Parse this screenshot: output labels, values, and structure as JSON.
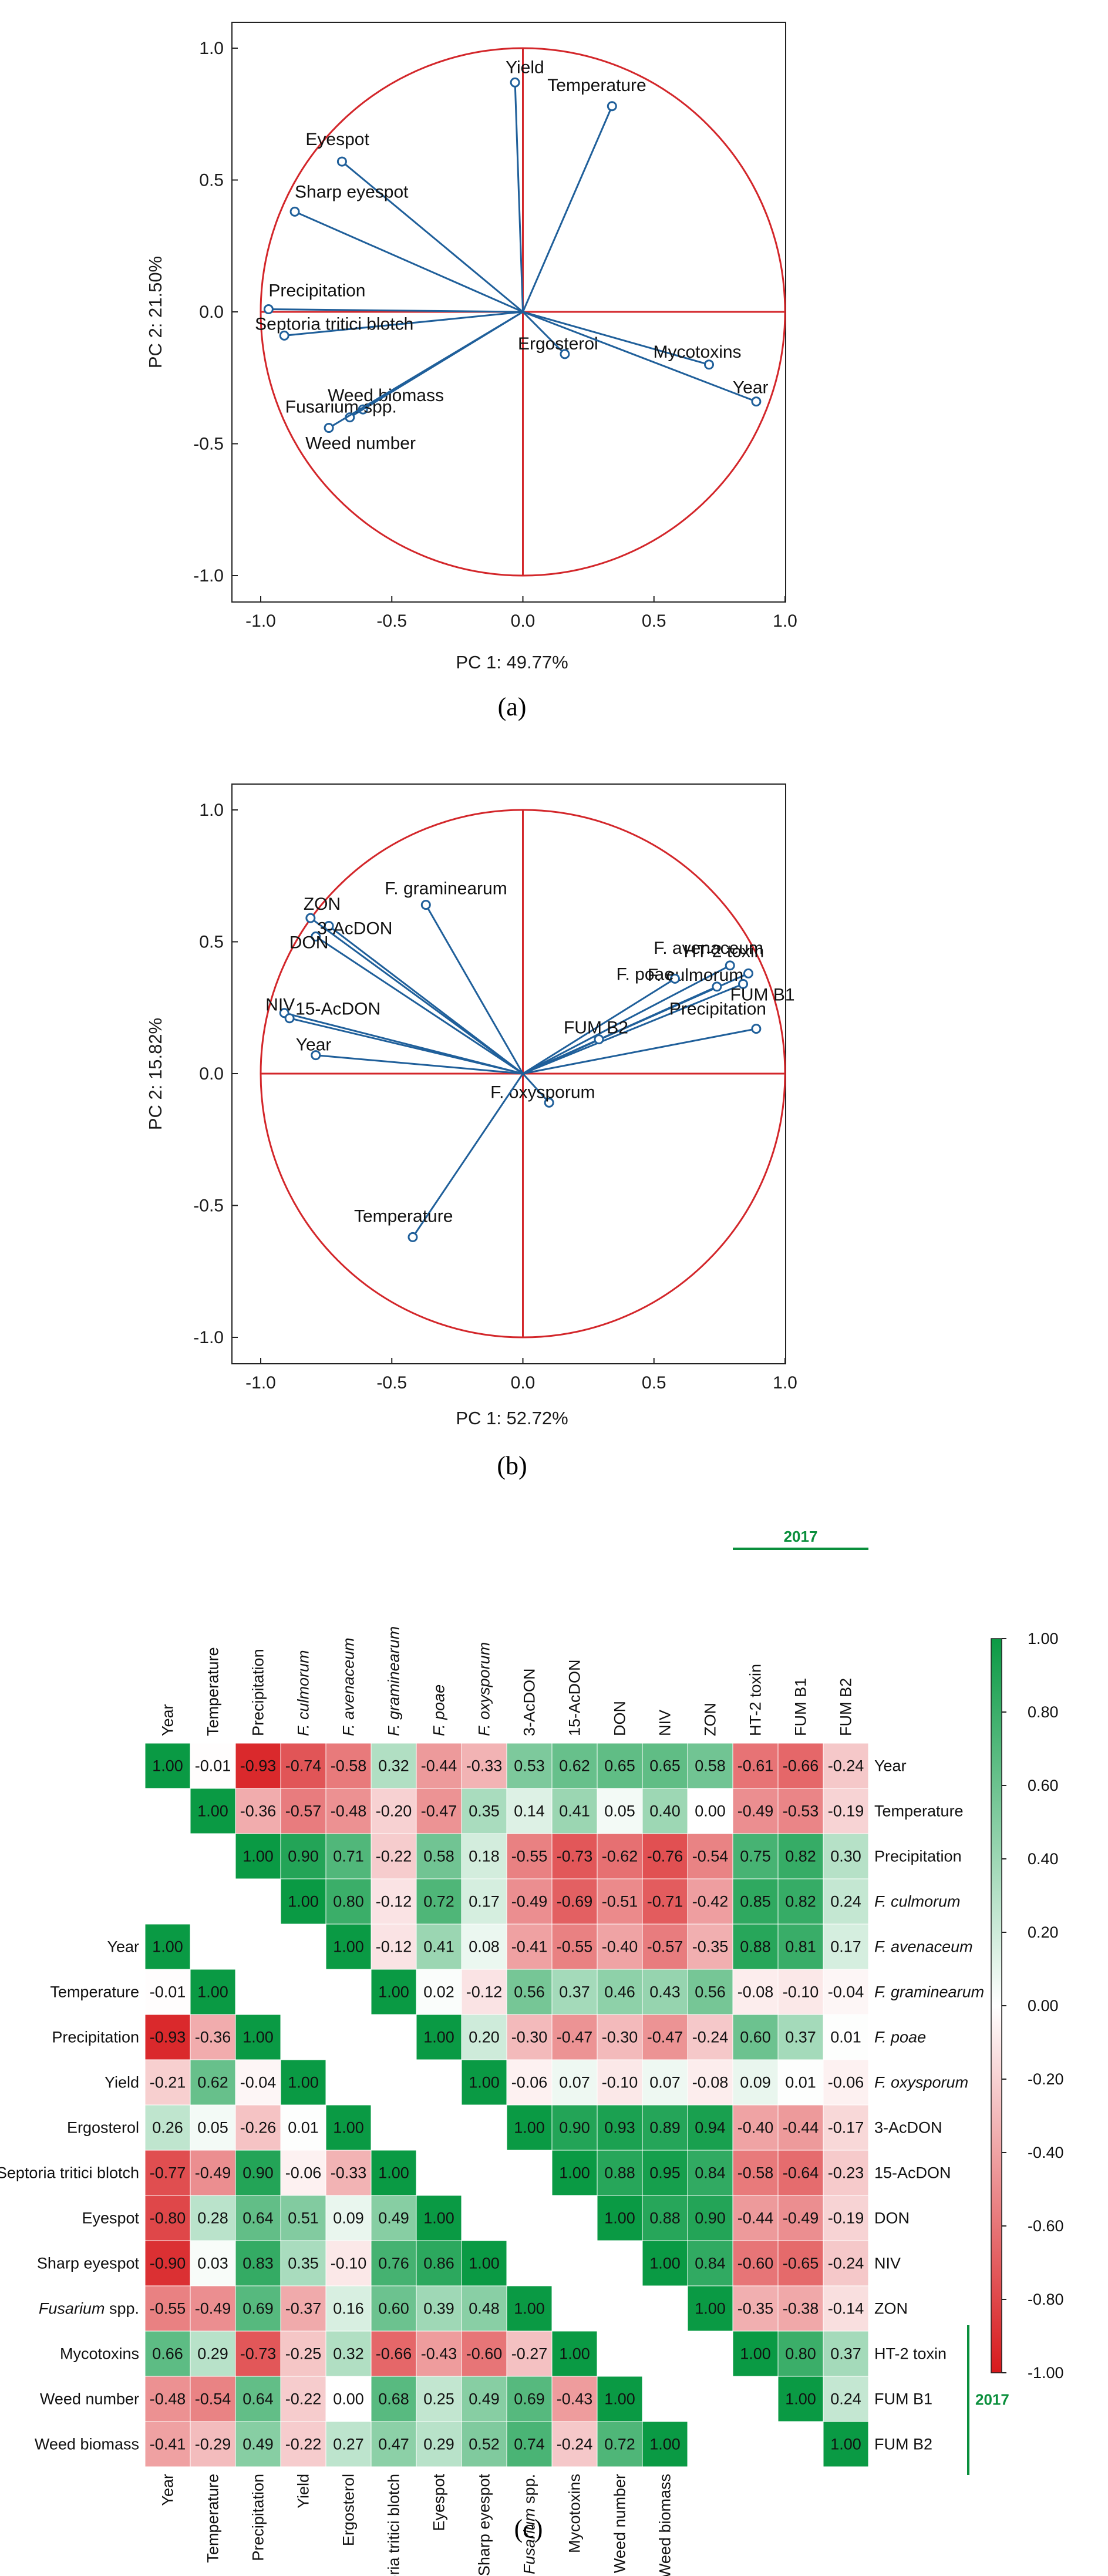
{
  "chart_data": [
    {
      "type": "scatter",
      "subtype": "pca-loading-plot",
      "panel_label": "(a)",
      "xlabel": "PC 1: 49.77%",
      "ylabel": "PC 2: 21.50%",
      "xlim": [
        -1.0,
        1.0
      ],
      "ylim": [
        -1.0,
        1.0
      ],
      "xticks": [
        "-1.0",
        "-0.5",
        "0.0",
        "0.5",
        "1.0"
      ],
      "yticks": [
        "1.0",
        "0.5",
        "0.0",
        "-0.5",
        "-1.0"
      ],
      "unit_circle": true,
      "points": [
        {
          "name": "Yield",
          "x": -0.03,
          "y": 0.87
        },
        {
          "name": "Temperature",
          "x": 0.34,
          "y": 0.78
        },
        {
          "name": "Eyespot",
          "x": -0.69,
          "y": 0.57
        },
        {
          "name": "Sharp eyespot",
          "x": -0.87,
          "y": 0.38
        },
        {
          "name": "Precipitation",
          "x": -0.97,
          "y": 0.01
        },
        {
          "name": "Septoria tritici blotch",
          "x": -0.91,
          "y": -0.09
        },
        {
          "name": "Ergosterol",
          "x": 0.16,
          "y": -0.16
        },
        {
          "name": "Mycotoxins",
          "x": 0.71,
          "y": -0.2
        },
        {
          "name": "Year",
          "x": 0.89,
          "y": -0.34
        },
        {
          "name": "Weed biomass",
          "x": -0.61,
          "y": -0.37
        },
        {
          "name": "Fusarium spp.",
          "x": -0.66,
          "y": -0.4
        },
        {
          "name": "Weed number",
          "x": -0.74,
          "y": -0.44
        }
      ]
    },
    {
      "type": "scatter",
      "subtype": "pca-loading-plot",
      "panel_label": "(b)",
      "xlabel": "PC 1: 52.72%",
      "ylabel": "PC 2: 15.82%",
      "xlim": [
        -1.0,
        1.0
      ],
      "ylim": [
        -1.0,
        1.0
      ],
      "xticks": [
        "-1.0",
        "-0.5",
        "0.0",
        "0.5",
        "1.0"
      ],
      "yticks": [
        "1.0",
        "0.5",
        "0.0",
        "-0.5",
        "-1.0"
      ],
      "unit_circle": true,
      "points": [
        {
          "name": "F. graminearum",
          "x": -0.37,
          "y": 0.64
        },
        {
          "name": "ZON",
          "x": -0.81,
          "y": 0.59
        },
        {
          "name": "3-AcDON",
          "x": -0.74,
          "y": 0.56
        },
        {
          "name": "DON",
          "x": -0.79,
          "y": 0.52
        },
        {
          "name": "NIV",
          "x": -0.91,
          "y": 0.23
        },
        {
          "name": "15-AcDON",
          "x": -0.89,
          "y": 0.21
        },
        {
          "name": "Year",
          "x": -0.79,
          "y": 0.07
        },
        {
          "name": "HT-2 toxin",
          "x": 0.86,
          "y": 0.38
        },
        {
          "name": "F. avenaceum",
          "x": 0.79,
          "y": 0.41
        },
        {
          "name": "F. culmorum",
          "x": 0.74,
          "y": 0.33
        },
        {
          "name": "F. poae",
          "x": 0.58,
          "y": 0.36
        },
        {
          "name": "FUM B1",
          "x": 0.84,
          "y": 0.34
        },
        {
          "name": "Precipitation",
          "x": 0.89,
          "y": 0.17
        },
        {
          "name": "FUM B2",
          "x": 0.29,
          "y": 0.13
        },
        {
          "name": "F. oxysporum",
          "x": 0.1,
          "y": -0.11
        },
        {
          "name": "Temperature",
          "x": -0.42,
          "y": -0.62
        }
      ]
    },
    {
      "type": "heatmap",
      "panel_label": "(c)",
      "description_year": "2017",
      "color_scale": {
        "min": -1.0,
        "max": 1.0,
        "low": "#d7191c",
        "mid": "#ffffff",
        "high": "#0a9a44"
      },
      "colorbar_ticks": [
        "1.00",
        "0.80",
        "0.60",
        "0.40",
        "0.20",
        "0.00",
        "-0.20",
        "-0.40",
        "-0.60",
        "-0.80",
        "-1.00"
      ],
      "upper": {
        "columns": [
          "Year",
          "Temperature",
          "Precipitation",
          "F. culmorum",
          "F. avenaceum",
          "F. graminearum",
          "F. poae",
          "F. oxysporum",
          "3-AcDON",
          "15-AcDON",
          "DON",
          "NIV",
          "ZON",
          "HT-2 toxin",
          "FUM B1",
          "FUM B2"
        ],
        "rows": [
          {
            "label": "Year",
            "values": [
              "1.00",
              "-0.01",
              "-0.93",
              "-0.74",
              "-0.58",
              "0.32",
              "-0.44",
              "-0.33",
              "0.53",
              "0.62",
              "0.65",
              "0.65",
              "0.58",
              "-0.61",
              "-0.66",
              "-0.24"
            ]
          },
          {
            "label": "Temperature",
            "values": [
              null,
              "1.00",
              "-0.36",
              "-0.57",
              "-0.48",
              "-0.20",
              "-0.47",
              "0.35",
              "0.14",
              "0.41",
              "0.05",
              "0.40",
              "0.00",
              "-0.49",
              "-0.53",
              "-0.19"
            ]
          },
          {
            "label": "Precipitation",
            "values": [
              null,
              null,
              "1.00",
              "0.90",
              "0.71",
              "-0.22",
              "0.58",
              "0.18",
              "-0.55",
              "-0.73",
              "-0.62",
              "-0.76",
              "-0.54",
              "0.75",
              "0.82",
              "0.30"
            ]
          },
          {
            "label": "F. culmorum",
            "values": [
              null,
              null,
              null,
              "1.00",
              "0.80",
              "-0.12",
              "0.72",
              "0.17",
              "-0.49",
              "-0.69",
              "-0.51",
              "-0.71",
              "-0.42",
              "0.85",
              "0.82",
              "0.24"
            ]
          },
          {
            "label": "F. avenaceum",
            "values": [
              null,
              null,
              null,
              null,
              "1.00",
              "-0.12",
              "0.41",
              "0.08",
              "-0.41",
              "-0.55",
              "-0.40",
              "-0.57",
              "-0.35",
              "0.88",
              "0.81",
              "0.17"
            ]
          },
          {
            "label": "F. graminearum",
            "values": [
              null,
              null,
              null,
              null,
              null,
              "1.00",
              "0.02",
              "-0.12",
              "0.56",
              "0.37",
              "0.46",
              "0.43",
              "0.56",
              "-0.08",
              "-0.10",
              "-0.04"
            ]
          },
          {
            "label": "F. poae",
            "values": [
              null,
              null,
              null,
              null,
              null,
              null,
              "1.00",
              "0.20",
              "-0.30",
              "-0.47",
              "-0.30",
              "-0.47",
              "-0.24",
              "0.60",
              "0.37",
              "0.01"
            ]
          },
          {
            "label": "F. oxysporum",
            "values": [
              null,
              null,
              null,
              null,
              null,
              null,
              null,
              "1.00",
              "-0.06",
              "0.07",
              "-0.10",
              "0.07",
              "-0.08",
              "0.09",
              "0.01",
              "-0.06"
            ]
          },
          {
            "label": "3-AcDON",
            "values": [
              null,
              null,
              null,
              null,
              null,
              null,
              null,
              null,
              "1.00",
              "0.90",
              "0.93",
              "0.89",
              "0.94",
              "-0.40",
              "-0.44",
              "-0.17"
            ]
          },
          {
            "label": "15-AcDON",
            "values": [
              null,
              null,
              null,
              null,
              null,
              null,
              null,
              null,
              null,
              "1.00",
              "0.88",
              "0.95",
              "0.84",
              "-0.58",
              "-0.64",
              "-0.23"
            ]
          },
          {
            "label": "DON",
            "values": [
              null,
              null,
              null,
              null,
              null,
              null,
              null,
              null,
              null,
              null,
              "1.00",
              "0.88",
              "0.90",
              "-0.44",
              "-0.49",
              "-0.19"
            ]
          },
          {
            "label": "NIV",
            "values": [
              null,
              null,
              null,
              null,
              null,
              null,
              null,
              null,
              null,
              null,
              null,
              "1.00",
              "0.84",
              "-0.60",
              "-0.65",
              "-0.24"
            ]
          },
          {
            "label": "ZON",
            "values": [
              null,
              null,
              null,
              null,
              null,
              null,
              null,
              null,
              null,
              null,
              null,
              null,
              "1.00",
              "-0.35",
              "-0.38",
              "-0.14"
            ]
          },
          {
            "label": "HT-2 toxin",
            "values": [
              null,
              null,
              null,
              null,
              null,
              null,
              null,
              null,
              null,
              null,
              null,
              null,
              null,
              "1.00",
              "0.80",
              "0.37"
            ]
          },
          {
            "label": "FUM B1",
            "values": [
              null,
              null,
              null,
              null,
              null,
              null,
              null,
              null,
              null,
              null,
              null,
              null,
              null,
              null,
              "1.00",
              "0.24"
            ]
          },
          {
            "label": "FUM B2",
            "values": [
              null,
              null,
              null,
              null,
              null,
              null,
              null,
              null,
              null,
              null,
              null,
              null,
              null,
              null,
              null,
              "1.00"
            ]
          }
        ]
      },
      "lower": {
        "columns": [
          "Year",
          "Temperature",
          "Precipitation",
          "Yield",
          "Ergosterol",
          "Septoria tritici blotch",
          "Eyespot",
          "Sharp eyespot",
          "Fusarium spp.",
          "Mycotoxins",
          "Weed number",
          "Weed biomass"
        ],
        "rows": [
          {
            "label": "Year",
            "values": [
              "1.00",
              null,
              null,
              null,
              null,
              null,
              null,
              null,
              null,
              null,
              null,
              null
            ]
          },
          {
            "label": "Temperature",
            "values": [
              "-0.01",
              "1.00",
              null,
              null,
              null,
              null,
              null,
              null,
              null,
              null,
              null,
              null
            ]
          },
          {
            "label": "Precipitation",
            "values": [
              "-0.93",
              "-0.36",
              "1.00",
              null,
              null,
              null,
              null,
              null,
              null,
              null,
              null,
              null
            ]
          },
          {
            "label": "Yield",
            "values": [
              "-0.21",
              "0.62",
              "-0.04",
              "1.00",
              null,
              null,
              null,
              null,
              null,
              null,
              null,
              null
            ]
          },
          {
            "label": "Ergosterol",
            "values": [
              "0.26",
              "0.05",
              "-0.26",
              "0.01",
              "1.00",
              null,
              null,
              null,
              null,
              null,
              null,
              null
            ]
          },
          {
            "label": "Septoria tritici blotch",
            "values": [
              "-0.77",
              "-0.49",
              "0.90",
              "-0.06",
              "-0.33",
              "1.00",
              null,
              null,
              null,
              null,
              null,
              null
            ]
          },
          {
            "label": "Eyespot",
            "values": [
              "-0.80",
              "0.28",
              "0.64",
              "0.51",
              "0.09",
              "0.49",
              "1.00",
              null,
              null,
              null,
              null,
              null
            ]
          },
          {
            "label": "Sharp eyespot",
            "values": [
              "-0.90",
              "0.03",
              "0.83",
              "0.35",
              "-0.10",
              "0.76",
              "0.86",
              "1.00",
              null,
              null,
              null,
              null
            ]
          },
          {
            "label": "Fusarium spp.",
            "values": [
              "-0.55",
              "-0.49",
              "0.69",
              "-0.37",
              "0.16",
              "0.60",
              "0.39",
              "0.48",
              "1.00",
              null,
              null,
              null
            ]
          },
          {
            "label": "Mycotoxins",
            "values": [
              "0.66",
              "0.29",
              "-0.73",
              "-0.25",
              "0.32",
              "-0.66",
              "-0.43",
              "-0.60",
              "-0.27",
              "1.00",
              null,
              null
            ]
          },
          {
            "label": "Weed number",
            "values": [
              "-0.48",
              "-0.54",
              "0.64",
              "-0.22",
              "0.00",
              "0.68",
              "0.25",
              "0.49",
              "0.69",
              "-0.43",
              "1.00",
              null
            ]
          },
          {
            "label": "Weed biomass",
            "values": [
              "-0.41",
              "-0.29",
              "0.49",
              "-0.22",
              "0.27",
              "0.47",
              "0.29",
              "0.52",
              "0.74",
              "-0.24",
              "0.72",
              "1.00"
            ]
          }
        ]
      }
    }
  ]
}
